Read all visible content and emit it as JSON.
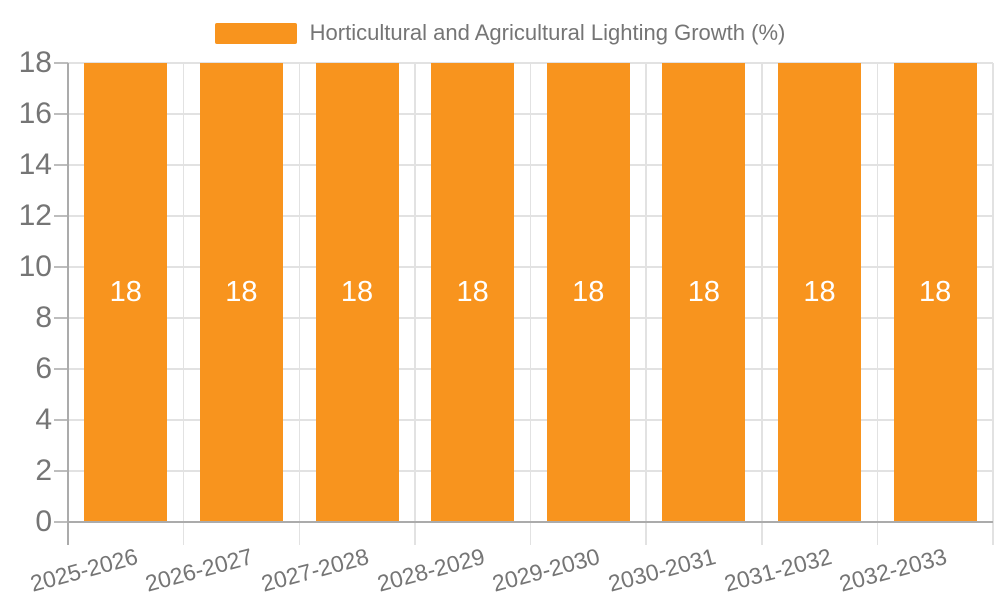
{
  "chart_data": {
    "type": "bar",
    "title": "Horticultural and Agricultural Lighting Growth (%)",
    "legend": {
      "position": "top",
      "entries": [
        "Horticultural and Agricultural Lighting Growth (%)"
      ]
    },
    "categories": [
      "2025-2026",
      "2026-2027",
      "2027-2028",
      "2028-2029",
      "2029-2030",
      "2030-2031",
      "2031-2032",
      "2032-2033"
    ],
    "series": [
      {
        "name": "Horticultural and Agricultural Lighting Growth (%)",
        "values": [
          18,
          18,
          18,
          18,
          18,
          18,
          18,
          18
        ]
      }
    ],
    "value_labels": [
      "18",
      "18",
      "18",
      "18",
      "18",
      "18",
      "18",
      "18"
    ],
    "xlabel": "",
    "ylabel": "",
    "ylim": [
      0,
      18
    ],
    "yticks": [
      0,
      2,
      4,
      6,
      8,
      10,
      12,
      14,
      16,
      18
    ],
    "grid": true,
    "x_tick_rotation_deg": -15,
    "colors": {
      "bar": "#F8941E",
      "grid": "#E2E2E2",
      "tick": "#BDBDBD",
      "axis": "#ABABAB",
      "label_text": "#757575",
      "value_text": "#FFFFFF",
      "background": "#FFFFFF"
    }
  }
}
